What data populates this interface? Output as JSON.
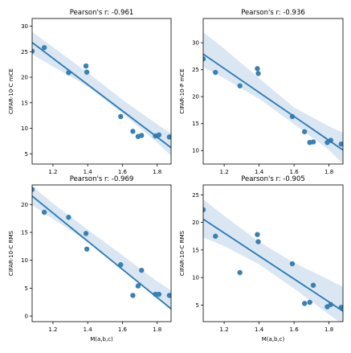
{
  "colors": {
    "point": "#3a80b4",
    "line": "#2878b5",
    "band": "#bcd4e9",
    "axis": "#000000"
  },
  "chart_data": [
    {
      "type": "scatter",
      "title": "Pearson's r:  -0.961",
      "xlabel": "",
      "ylabel": "CIFAR-10-C mCE",
      "xlim": [
        1.08,
        1.88
      ],
      "ylim": [
        3.0,
        31.5
      ],
      "xticks": [
        "1.2",
        "1.4",
        "1.6",
        "1.8"
      ],
      "xtick_values": [
        1.2,
        1.4,
        1.6,
        1.8
      ],
      "yticks": [
        "5",
        "10",
        "15",
        "20",
        "25",
        "30"
      ],
      "ytick_values": [
        5,
        10,
        15,
        20,
        25,
        30
      ],
      "x": [
        1.08,
        1.15,
        1.29,
        1.39,
        1.395,
        1.59,
        1.66,
        1.69,
        1.71,
        1.79,
        1.81,
        1.87
      ],
      "y": [
        25.1,
        25.8,
        20.9,
        22.2,
        21.0,
        12.3,
        9.4,
        8.4,
        8.6,
        8.5,
        8.7,
        8.3
      ],
      "fit": {
        "x": [
          1.08,
          1.88
        ],
        "y": [
          26.8,
          6.2
        ]
      },
      "band": {
        "x": [
          1.08,
          1.2,
          1.4,
          1.6,
          1.8,
          1.88
        ],
        "lower": [
          24.5,
          22.1,
          18.2,
          12.9,
          7.2,
          4.6
        ],
        "upper": [
          28.9,
          25.9,
          20.9,
          15.6,
          10.8,
          9.0
        ]
      }
    },
    {
      "type": "scatter",
      "title": "Pearson's r:  -0.936",
      "xlabel": "",
      "ylabel": "CIFAR-10-P mCE",
      "xlim": [
        1.08,
        1.88
      ],
      "ylim": [
        7.5,
        34.5
      ],
      "xticks": [
        "1.2",
        "1.4",
        "1.6",
        "1.8"
      ],
      "xtick_values": [
        1.2,
        1.4,
        1.6,
        1.8
      ],
      "yticks": [
        "10",
        "15",
        "20",
        "25",
        "30"
      ],
      "ytick_values": [
        10,
        15,
        20,
        25,
        30
      ],
      "x": [
        1.08,
        1.15,
        1.29,
        1.39,
        1.395,
        1.59,
        1.66,
        1.69,
        1.71,
        1.79,
        1.81,
        1.87
      ],
      "y": [
        27.0,
        24.5,
        22.0,
        25.2,
        24.3,
        16.3,
        13.5,
        11.5,
        11.6,
        11.5,
        11.9,
        11.2
      ],
      "fit": {
        "x": [
          1.08,
          1.88
        ],
        "y": [
          27.9,
          10.1
        ]
      },
      "band": {
        "x": [
          1.08,
          1.2,
          1.4,
          1.6,
          1.8,
          1.88
        ],
        "lower": [
          25.5,
          23.4,
          19.6,
          14.9,
          10.1,
          7.5
        ],
        "upper": [
          32.0,
          28.9,
          23.4,
          18.0,
          14.5,
          13.3
        ]
      }
    },
    {
      "type": "scatter",
      "title": "Pearson's r:  -0.969",
      "xlabel": "M(a,b,c)",
      "ylabel": "CIFAR-10-C RMS",
      "xlim": [
        1.08,
        1.88
      ],
      "ylim": [
        -1.0,
        23.5
      ],
      "xticks": [
        "1.2",
        "1.4",
        "1.6",
        "1.8"
      ],
      "xtick_values": [
        1.2,
        1.4,
        1.6,
        1.8
      ],
      "yticks": [
        "0",
        "5",
        "10",
        "15",
        "20"
      ],
      "ytick_values": [
        0,
        5,
        10,
        15,
        20
      ],
      "x": [
        1.08,
        1.15,
        1.29,
        1.39,
        1.395,
        1.59,
        1.66,
        1.69,
        1.71,
        1.79,
        1.81,
        1.87
      ],
      "y": [
        22.7,
        18.6,
        17.7,
        14.8,
        12.0,
        9.2,
        3.7,
        5.4,
        8.2,
        3.9,
        3.9,
        3.7
      ],
      "fit": {
        "x": [
          1.08,
          1.88
        ],
        "y": [
          21.5,
          1.3
        ]
      },
      "band": {
        "x": [
          1.08,
          1.2,
          1.4,
          1.6,
          1.8,
          1.88
        ],
        "lower": [
          19.9,
          17.4,
          13.3,
          8.2,
          3.2,
          1.0
        ],
        "upper": [
          23.3,
          20.2,
          15.5,
          10.9,
          6.2,
          4.6
        ]
      }
    },
    {
      "type": "scatter",
      "title": "Pearson's r:  -0.905",
      "xlabel": "M(a,b,c)",
      "ylabel": "CIFAR-10-C RMS",
      "xlim": [
        1.08,
        1.88
      ],
      "ylim": [
        2.0,
        26.8
      ],
      "xticks": [
        "1.2",
        "1.4",
        "1.6",
        "1.8"
      ],
      "xtick_values": [
        1.2,
        1.4,
        1.6,
        1.8
      ],
      "yticks": [
        "5",
        "10",
        "15",
        "20",
        "25"
      ],
      "ytick_values": [
        5,
        10,
        15,
        20,
        25
      ],
      "x": [
        1.08,
        1.15,
        1.29,
        1.39,
        1.395,
        1.59,
        1.66,
        1.69,
        1.71,
        1.79,
        1.81,
        1.87
      ],
      "y": [
        22.3,
        17.5,
        10.9,
        17.8,
        16.5,
        12.5,
        5.3,
        5.5,
        8.6,
        4.7,
        5.1,
        4.6
      ],
      "fit": {
        "x": [
          1.08,
          1.88
        ],
        "y": [
          20.6,
          3.9
        ]
      },
      "band": {
        "x": [
          1.08,
          1.2,
          1.4,
          1.6,
          1.8,
          1.88
        ],
        "lower": [
          17.3,
          15.7,
          12.4,
          8.0,
          3.3,
          1.5
        ],
        "upper": [
          24.2,
          21.2,
          16.5,
          12.7,
          9.6,
          8.3
        ]
      }
    }
  ]
}
